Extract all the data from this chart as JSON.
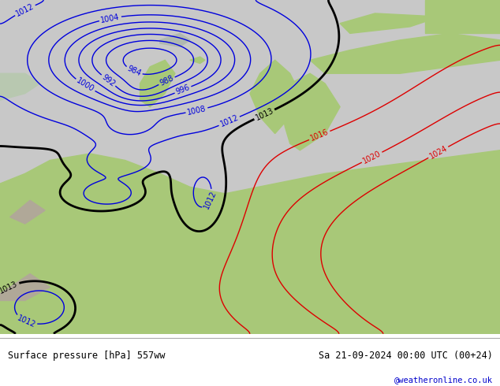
{
  "title_left": "Surface pressure [hPa] 557ww",
  "title_right": "Sa 21-09-2024 00:00 UTC (00+24)",
  "credit": "@weatheronline.co.uk",
  "blue_contour_color": "#0000dd",
  "red_contour_color": "#dd0000",
  "black_contour_color": "#000000",
  "fig_width": 6.34,
  "fig_height": 4.9,
  "dpi": 100,
  "land_green": "#a8c878",
  "ocean_gray": "#c8c8c8",
  "footer_white": "#ffffff"
}
